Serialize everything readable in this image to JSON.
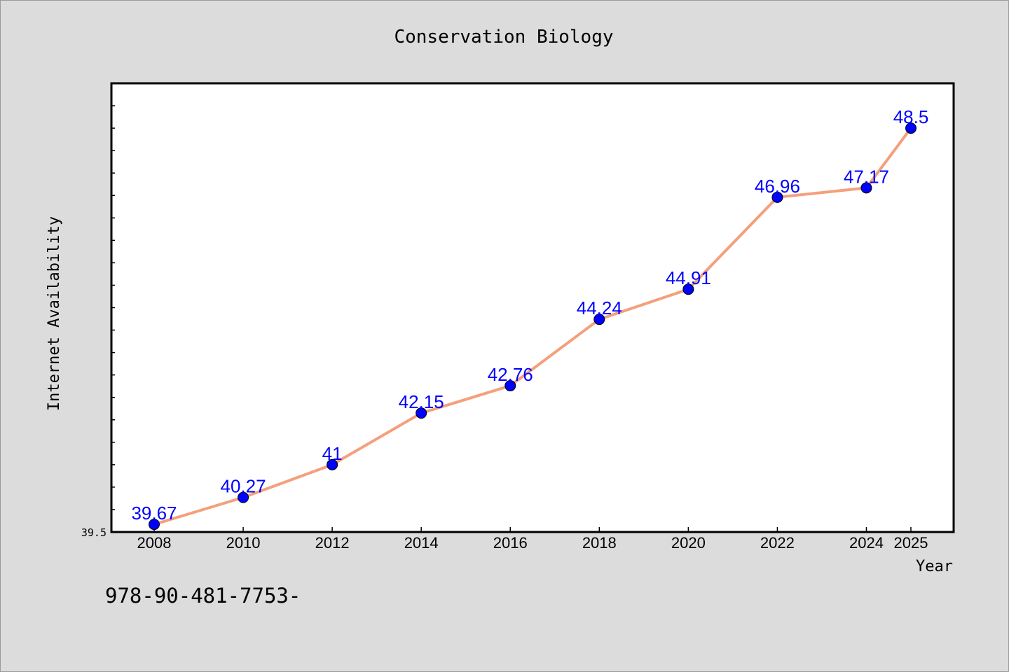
{
  "chart_data": {
    "type": "line",
    "title": "Conservation Biology",
    "xlabel": "Year",
    "ylabel": "Internet Availability",
    "categories": [
      "2008",
      "2010",
      "2012",
      "2014",
      "2016",
      "2018",
      "2020",
      "2022",
      "2024",
      "2025"
    ],
    "series": [
      {
        "values": [
          39.67,
          40.27,
          41,
          42.15,
          42.76,
          44.24,
          44.91,
          46.96,
          47.17,
          48.5
        ]
      }
    ],
    "data_labels": [
      "39.67",
      "40.27",
      "41",
      "42.15",
      "42.76",
      "44.24",
      "44.91",
      "46.96",
      "47.17",
      "48.5"
    ],
    "y_tick_label": "39.5",
    "ylim": [
      39.5,
      49.5
    ],
    "grid": false,
    "colors": {
      "line": "#f4a07c",
      "marker": "#0000ff",
      "label": "#0000ff",
      "background": "#dcdcdc",
      "plot_bg": "#ffffff"
    }
  },
  "footer_text": "978-90-481-7753-"
}
